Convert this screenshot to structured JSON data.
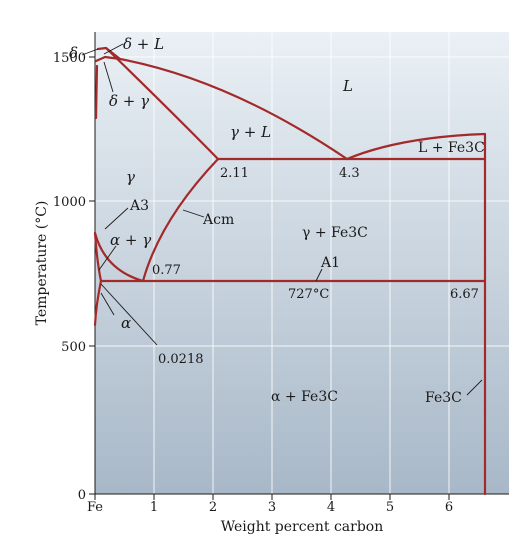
{
  "axes": {
    "xlabel": "Weight percent carbon",
    "ylabel": "Temperature (°C)",
    "x_ticks": [
      "Fe",
      "1",
      "2",
      "3",
      "4",
      "5",
      "6"
    ],
    "y_ticks": [
      "0",
      "500",
      "1000",
      "1500"
    ]
  },
  "regions": {
    "delta_plus_L": "δ + L",
    "delta": "δ",
    "delta_plus_gamma": "δ + γ",
    "L": "L",
    "gamma_plus_L": "γ + L",
    "L_plus_Fe3C": "L + Fe3C",
    "gamma": "γ",
    "gamma_plus_Fe3C": "γ + Fe3C",
    "alpha_plus_gamma": "α + γ",
    "alpha": "α",
    "alpha_plus_Fe3C": "α + Fe3C",
    "Fe3C": "Fe3C"
  },
  "lines": {
    "A3": "A3",
    "Acm": "Acm",
    "A1": "A1"
  },
  "points": {
    "c_2_11": "2.11",
    "c_4_3": "4.3",
    "c_0_77": "0.77",
    "c_0_0218": "0.0218",
    "t_727": "727°C",
    "c_6_67": "6.67"
  },
  "colors": {
    "phase_line": "#a32a2a",
    "plot_top": "#eaf0f5",
    "plot_bottom": "#a8b8c8"
  },
  "chart_data": {
    "type": "phase-diagram",
    "x_range": [
      0,
      6.9
    ],
    "y_range": [
      0,
      1600
    ],
    "grid": true,
    "key_points": {
      "eutectic": {
        "carbon_wt_pct": 4.3,
        "temperature_C": 1148
      },
      "eutectoid": {
        "carbon_wt_pct": 0.77,
        "temperature_C": 727
      },
      "max_solubility_austenite": {
        "carbon_wt_pct": 2.11,
        "temperature_C": 1148
      },
      "max_solubility_ferrite": {
        "carbon_wt_pct": 0.0218,
        "temperature_C": 727
      },
      "cementite": {
        "carbon_wt_pct": 6.67
      }
    }
  }
}
